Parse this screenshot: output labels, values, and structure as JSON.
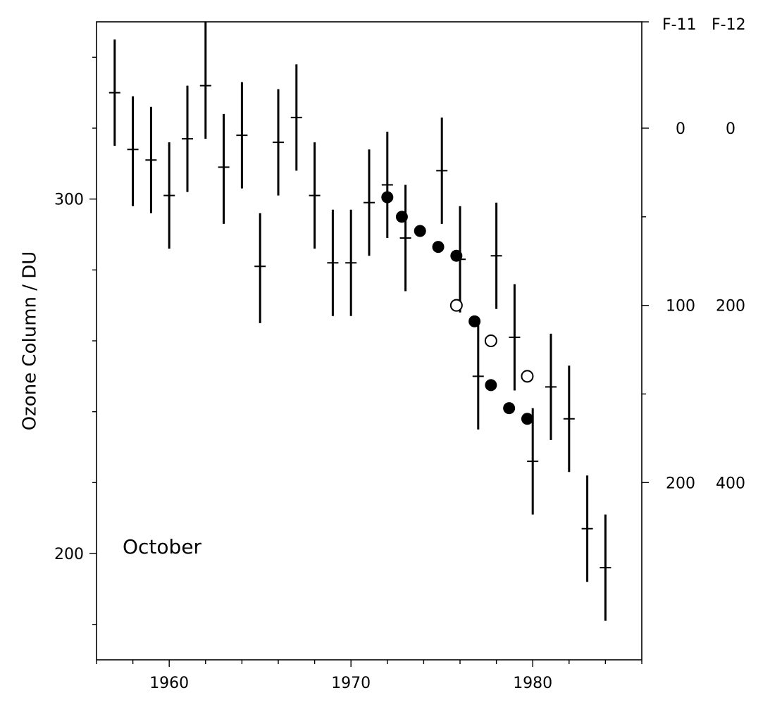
{
  "chart_data": {
    "type": "scatter",
    "title": "",
    "xlabel": "",
    "ylabel": "Ozone Column / DU",
    "xlim": [
      1956,
      1986
    ],
    "ylim": [
      170,
      350
    ],
    "x_ticks": [
      1960,
      1970,
      1980
    ],
    "y_ticks": [
      200,
      300
    ],
    "annotation": "October",
    "right_axis": {
      "headers": [
        "F-11",
        "F-12"
      ],
      "ticks": [
        {
          "y": 320,
          "f11": "0",
          "f12": "0"
        },
        {
          "y": 270,
          "f11": "100",
          "f12": "200"
        },
        {
          "y": 220,
          "f11": "200",
          "f12": "400"
        }
      ]
    },
    "series": [
      {
        "marker": "errorbar",
        "points": [
          {
            "x": 1957,
            "y": 330,
            "low": 315,
            "high": 345
          },
          {
            "x": 1958,
            "y": 314,
            "low": 298,
            "high": 329
          },
          {
            "x": 1959,
            "y": 311,
            "low": 296,
            "high": 326
          },
          {
            "x": 1960,
            "y": 301,
            "low": 286,
            "high": 316
          },
          {
            "x": 1961,
            "y": 317,
            "low": 302,
            "high": 332
          },
          {
            "x": 1962,
            "y": 332,
            "low": 317,
            "high": 350
          },
          {
            "x": 1963,
            "y": 309,
            "low": 293,
            "high": 324
          },
          {
            "x": 1964,
            "y": 318,
            "low": 303,
            "high": 333
          },
          {
            "x": 1965,
            "y": 281,
            "low": 265,
            "high": 296
          },
          {
            "x": 1966,
            "y": 316,
            "low": 301,
            "high": 331
          },
          {
            "x": 1967,
            "y": 323,
            "low": 308,
            "high": 338
          },
          {
            "x": 1968,
            "y": 301,
            "low": 286,
            "high": 316
          },
          {
            "x": 1969,
            "y": 282,
            "low": 267,
            "high": 297
          },
          {
            "x": 1970,
            "y": 282,
            "low": 267,
            "high": 297
          },
          {
            "x": 1971,
            "y": 299,
            "low": 284,
            "high": 314
          },
          {
            "x": 1972,
            "y": 304,
            "low": 289,
            "high": 319
          },
          {
            "x": 1973,
            "y": 289,
            "low": 274,
            "high": 304
          },
          {
            "x": 1975,
            "y": 308,
            "low": 293,
            "high": 323
          },
          {
            "x": 1976,
            "y": 283,
            "low": 268,
            "high": 298
          },
          {
            "x": 1977,
            "y": 250,
            "low": 235,
            "high": 265
          },
          {
            "x": 1978,
            "y": 284,
            "low": 269,
            "high": 299
          },
          {
            "x": 1979,
            "y": 261,
            "low": 246,
            "high": 276
          },
          {
            "x": 1980,
            "y": 226,
            "low": 211,
            "high": 241
          },
          {
            "x": 1981,
            "y": 247,
            "low": 232,
            "high": 262
          },
          {
            "x": 1982,
            "y": 238,
            "low": 223,
            "high": 253
          },
          {
            "x": 1983,
            "y": 207,
            "low": 192,
            "high": 222
          },
          {
            "x": 1984,
            "y": 196,
            "low": 181,
            "high": 211
          }
        ]
      },
      {
        "marker": "filled-circle",
        "points": [
          {
            "x": 1972.0,
            "y": 300.5
          },
          {
            "x": 1972.8,
            "y": 295
          },
          {
            "x": 1973.8,
            "y": 291
          },
          {
            "x": 1974.8,
            "y": 286.5
          },
          {
            "x": 1975.8,
            "y": 284
          },
          {
            "x": 1976.8,
            "y": 265.5
          },
          {
            "x": 1977.7,
            "y": 247.5
          },
          {
            "x": 1978.7,
            "y": 241
          },
          {
            "x": 1979.7,
            "y": 238
          }
        ]
      },
      {
        "marker": "open-circle",
        "points": [
          {
            "x": 1975.8,
            "y": 270
          },
          {
            "x": 1977.7,
            "y": 260
          },
          {
            "x": 1979.7,
            "y": 250
          }
        ]
      }
    ],
    "colors": {
      "ink": "#000000",
      "background": "#ffffff"
    }
  }
}
